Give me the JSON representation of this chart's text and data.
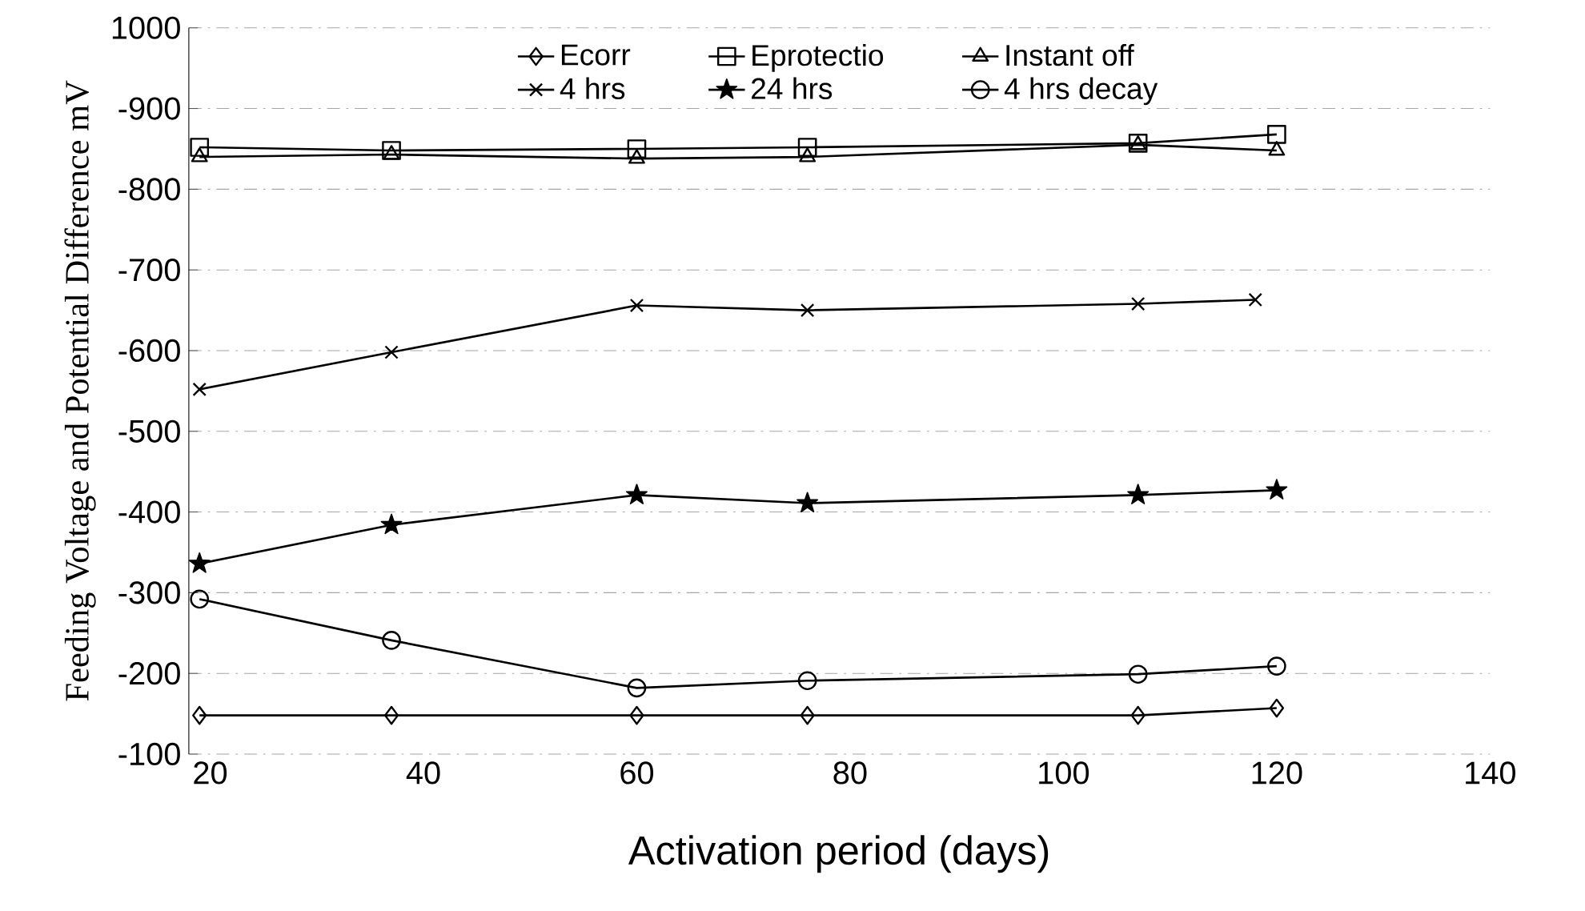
{
  "chart_data": {
    "type": "line",
    "xlabel": "Activation period (days)",
    "ylabel": "Feeding Voltage and  Potential Difference mV",
    "x": [
      19,
      37,
      60,
      76,
      107,
      120
    ],
    "xlim": [
      18,
      140
    ],
    "xticks": [
      20,
      40,
      60,
      80,
      100,
      120,
      140
    ],
    "ylim": [
      -100,
      -1000
    ],
    "yticks": [
      -100,
      -200,
      -300,
      -400,
      -500,
      -600,
      -700,
      -800,
      -900,
      {
        "value": -1000,
        "label": "1000"
      }
    ],
    "grid": "y",
    "legend": "top",
    "series": [
      {
        "name": "Ecorr",
        "color": "#000000",
        "marker": "diamond",
        "values": [
          -148,
          -148,
          -148,
          -148,
          -148,
          -157
        ]
      },
      {
        "name": "Eprotectio",
        "color": "#000000",
        "marker": "square",
        "values": [
          -852,
          -848,
          -850,
          -852,
          -857,
          -868
        ]
      },
      {
        "name": "Instant off",
        "color": "#000000",
        "marker": "triangle",
        "values": [
          -840,
          -843,
          -838,
          -840,
          -855,
          -848
        ]
      },
      {
        "name": "4 hrs",
        "color": "#000000",
        "marker": "cross",
        "x": [
          19,
          37,
          60,
          76,
          107,
          118
        ],
        "values": [
          -552,
          -598,
          -656,
          -650,
          -658,
          -663
        ]
      },
      {
        "name": "24 hrs",
        "color": "#000000",
        "marker": "star",
        "values": [
          -336,
          -384,
          -421,
          -411,
          -421,
          -427
        ]
      },
      {
        "name": "4 hrs decay",
        "color": "#000000",
        "marker": "circle",
        "values": [
          -292,
          -241,
          -182,
          -191,
          -199,
          -209
        ]
      }
    ]
  }
}
